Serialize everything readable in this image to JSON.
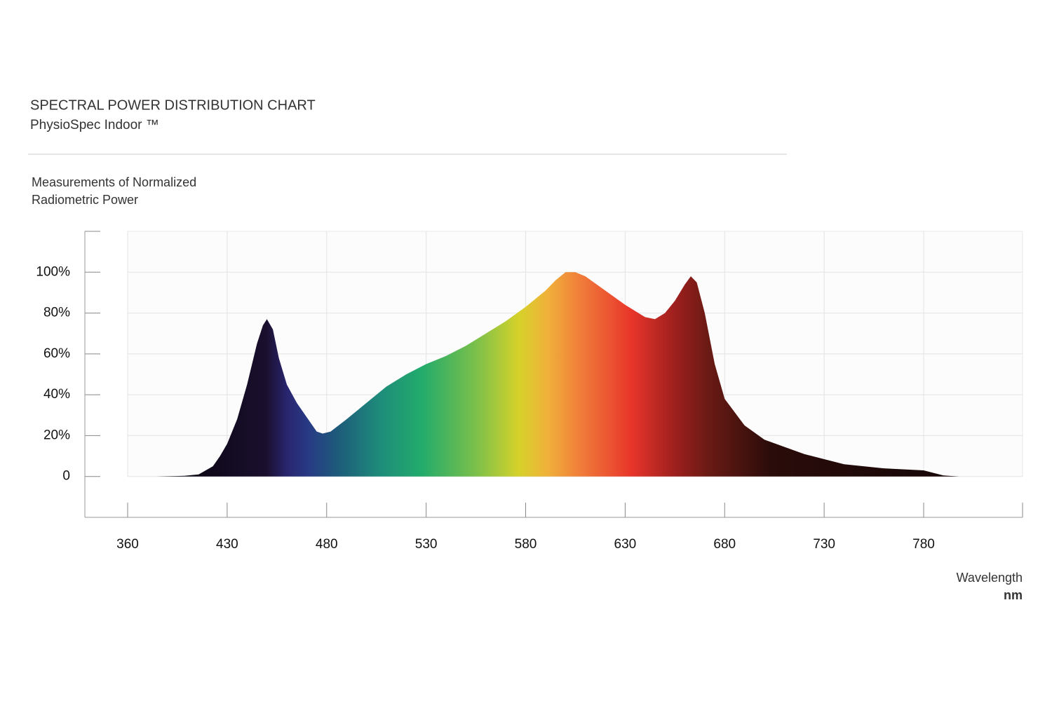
{
  "chart_data": {
    "type": "area",
    "title": "SPECTRAL POWER DISTRIBUTION CHART",
    "subtitle": "PhysioSpec Indoor ™",
    "y_label": [
      "Measurements of Normalized",
      "Radiometric Power"
    ],
    "x_label": "Wavelength",
    "x_unit": "nm",
    "x": [
      380,
      400,
      410,
      420,
      425,
      430,
      435,
      440,
      445,
      448,
      450,
      453,
      456,
      460,
      465,
      470,
      475,
      478,
      482,
      490,
      500,
      510,
      520,
      530,
      540,
      550,
      560,
      570,
      580,
      590,
      595,
      600,
      605,
      610,
      620,
      630,
      640,
      645,
      650,
      655,
      660,
      663,
      666,
      670,
      675,
      680,
      690,
      700,
      720,
      740,
      760,
      780,
      790,
      798
    ],
    "values": [
      0,
      0.3,
      1,
      5,
      10,
      16,
      28,
      45,
      65,
      74,
      77,
      72,
      58,
      45,
      36,
      29,
      22,
      21,
      22,
      28,
      36,
      44,
      50,
      55,
      59,
      64,
      70,
      76,
      83,
      91,
      96,
      100,
      100,
      98,
      91,
      84,
      78,
      77,
      80,
      86,
      94,
      98,
      95,
      80,
      55,
      38,
      25,
      18,
      11,
      6,
      4,
      3,
      0.5,
      0
    ],
    "xlim": [
      360,
      830
    ],
    "xticks": [
      360,
      430,
      480,
      530,
      580,
      630,
      680,
      730,
      780
    ],
    "ylim": [
      -20,
      120
    ],
    "yticks": [
      0,
      {
        "value": 20,
        "label": "20%"
      },
      {
        "value": 40,
        "label": "40%"
      },
      {
        "value": 60,
        "label": "60%"
      },
      {
        "value": 80,
        "label": "80%"
      },
      {
        "value": 100,
        "label": "100%"
      }
    ],
    "grid": true
  }
}
